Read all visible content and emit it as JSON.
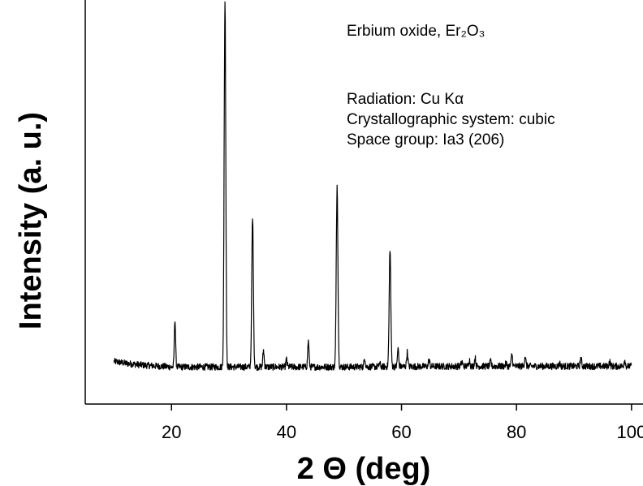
{
  "chart_data": {
    "type": "line",
    "title": "",
    "xlabel": "2 Θ (deg)",
    "ylabel": "Intensity (a. u.)",
    "xlim": [
      5,
      102
    ],
    "ylim": [
      -0.09,
      1.0
    ],
    "xticks": [
      20,
      40,
      60,
      80,
      100
    ],
    "yticks": [],
    "grid": false,
    "legend": "none",
    "line_color": "#000000",
    "annotations": [
      "Erbium oxide, Er₂O₃",
      "Radiation: Cu Kα",
      "Crystallographic system: cubic",
      "Space group: Ia3 (206)"
    ],
    "baseline": {
      "x": [
        10,
        12,
        15,
        20,
        30,
        40,
        50,
        60,
        70,
        80,
        90,
        100
      ],
      "y": [
        0.025,
        0.02,
        0.015,
        0.01,
        0.01,
        0.01,
        0.01,
        0.011,
        0.012,
        0.012,
        0.012,
        0.012
      ]
    },
    "peaks": [
      {
        "x": 20.6,
        "y": 0.14
      },
      {
        "x": 29.3,
        "y": 1.0
      },
      {
        "x": 34.1,
        "y": 0.41
      },
      {
        "x": 36.0,
        "y": 0.055
      },
      {
        "x": 40.0,
        "y": 0.03
      },
      {
        "x": 43.8,
        "y": 0.08
      },
      {
        "x": 48.8,
        "y": 0.5
      },
      {
        "x": 53.6,
        "y": 0.035
      },
      {
        "x": 56.2,
        "y": 0.02
      },
      {
        "x": 58.0,
        "y": 0.33
      },
      {
        "x": 59.4,
        "y": 0.06
      },
      {
        "x": 61.0,
        "y": 0.05
      },
      {
        "x": 64.8,
        "y": 0.03
      },
      {
        "x": 70.5,
        "y": 0.025
      },
      {
        "x": 71.8,
        "y": 0.03
      },
      {
        "x": 72.8,
        "y": 0.035
      },
      {
        "x": 75.5,
        "y": 0.025
      },
      {
        "x": 78.2,
        "y": 0.02
      },
      {
        "x": 79.2,
        "y": 0.045
      },
      {
        "x": 81.5,
        "y": 0.04
      },
      {
        "x": 87.5,
        "y": 0.02
      },
      {
        "x": 91.2,
        "y": 0.035
      },
      {
        "x": 96.2,
        "y": 0.025
      },
      {
        "x": 98.8,
        "y": 0.03
      }
    ]
  }
}
